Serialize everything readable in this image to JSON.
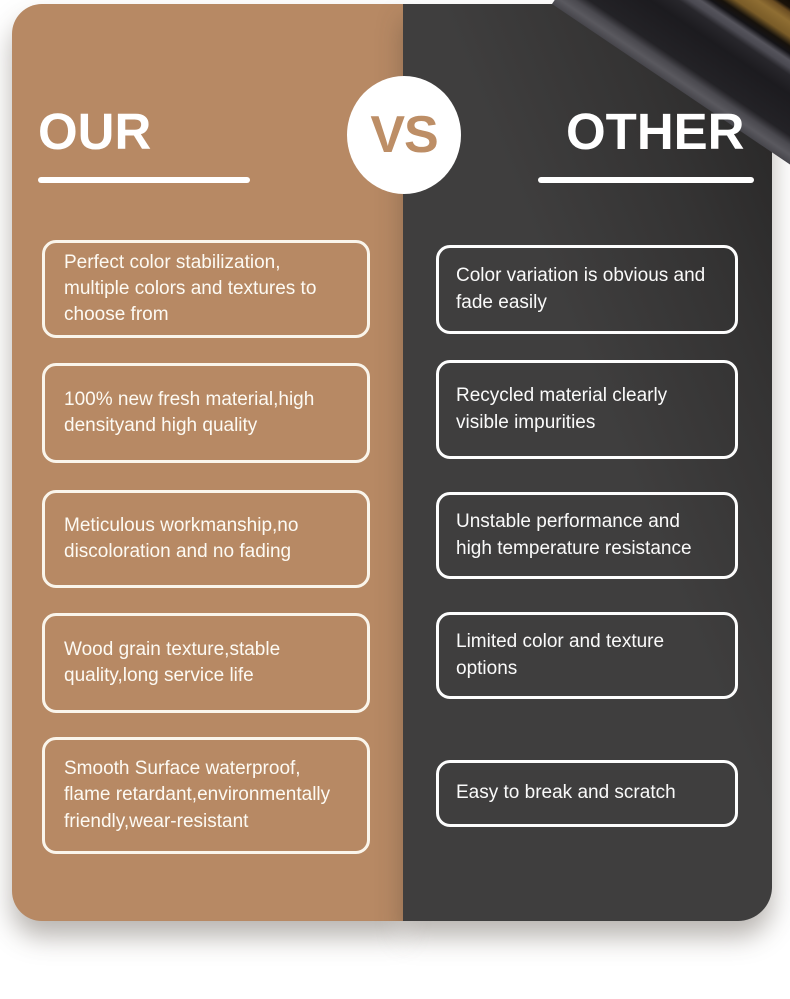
{
  "comparison": {
    "vs_label": "VS",
    "left": {
      "title": "OUR",
      "items": [
        "Perfect color stabilization, multiple colors and textures to choose from",
        "100% new fresh material,high densityand high quality",
        "Meticulous workmanship,no discoloration and no fading",
        "Wood grain texture,stable quality,long service life",
        "Smooth Surface waterproof, flame retardant,environmentally friendly,wear-resistant"
      ]
    },
    "right": {
      "title": "OTHER",
      "items": [
        "Color variation is obvious and fade easily",
        "Recycled material clearly visible impurities",
        "Unstable performance and high temperature resistance",
        "Limited color and texture options",
        "Easy to break and scratch"
      ]
    },
    "colors": {
      "left_panel_bg": "#b78964",
      "right_panel_bg": "#3d3c3c",
      "accent_tan": "#bd8e66",
      "box_border_left": "#faf5eb",
      "box_border_right": "#fdfdfd",
      "text": "#ffffff"
    }
  }
}
